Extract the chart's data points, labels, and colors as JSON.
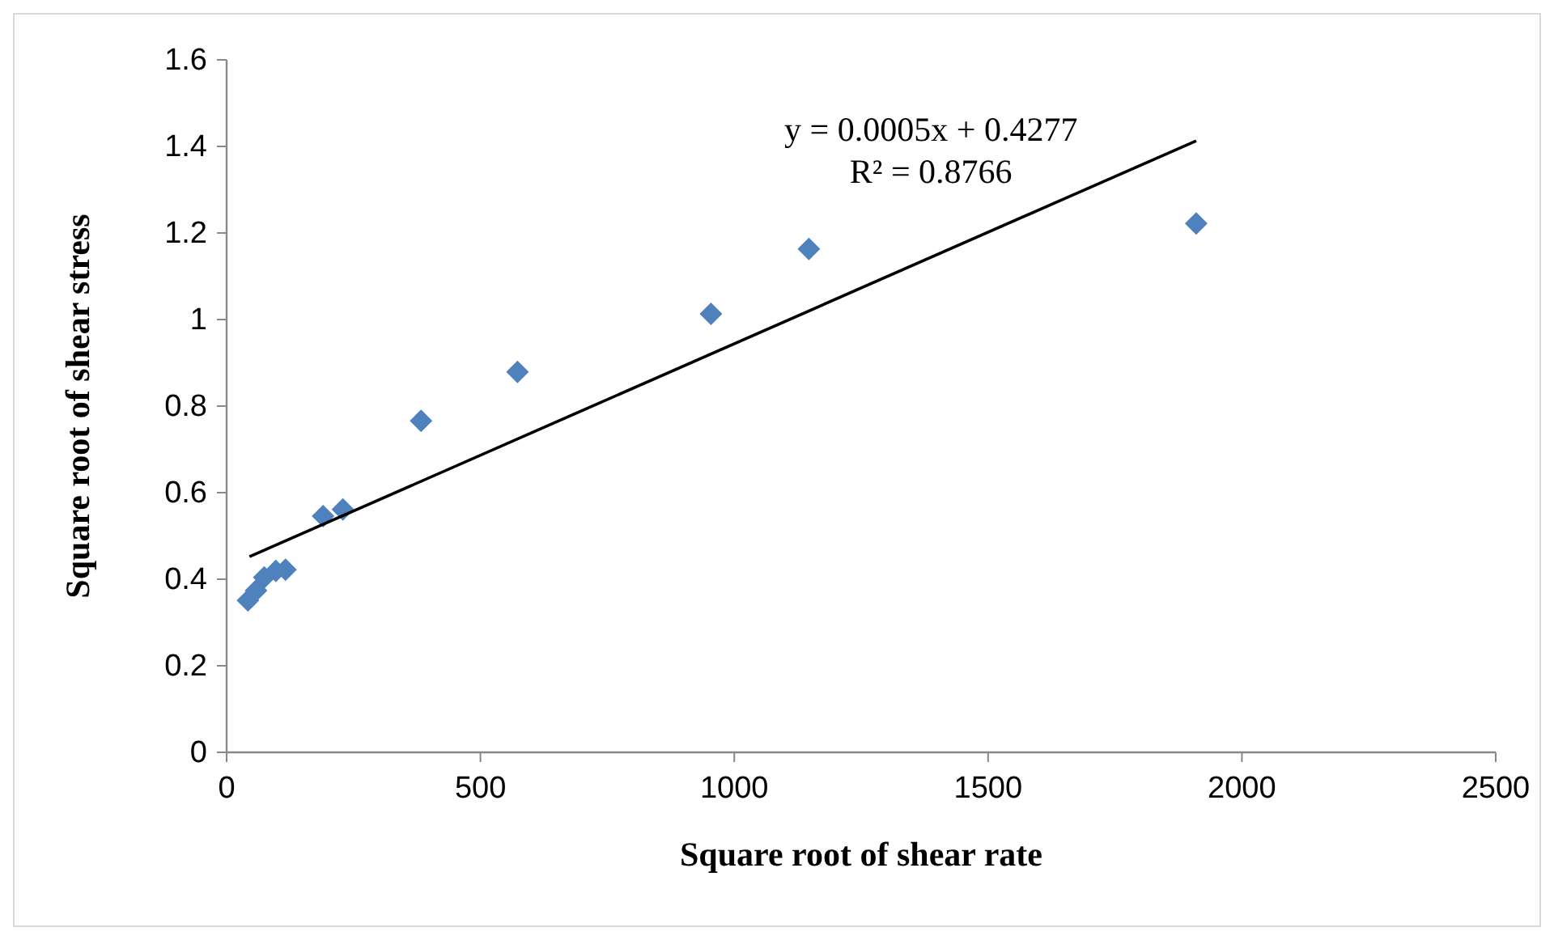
{
  "chart_data": {
    "type": "scatter",
    "xlabel": "Square root of shear rate",
    "ylabel": "Square root of shear stress",
    "xlim": [
      0,
      2500
    ],
    "xticks": [
      0,
      500,
      1000,
      1500,
      2000,
      2500
    ],
    "ylim": [
      0,
      1.6
    ],
    "yticks": [
      0,
      0.2,
      0.4,
      0.6,
      0.8,
      1,
      1.2,
      1.4,
      1.6
    ],
    "grid": false,
    "marker": "diamond",
    "series": [
      {
        "color": "#4f81bd",
        "x": [
          42,
          58,
          74,
          97,
          116,
          190,
          229,
          383,
          573,
          954,
          1147,
          1910
        ],
        "values": [
          0.351,
          0.374,
          0.404,
          0.419,
          0.422,
          0.546,
          0.561,
          0.766,
          0.879,
          1.013,
          1.163,
          1.222
        ]
      },
      {
        "type": "line",
        "color": "#000000",
        "line_style": "solid",
        "marker": "none",
        "x": [
          45,
          1910
        ],
        "values": [
          0.452,
          1.413
        ]
      }
    ],
    "annotations": [
      "y = 0.0005x + 0.4277",
      "R² = 0.8766"
    ]
  }
}
